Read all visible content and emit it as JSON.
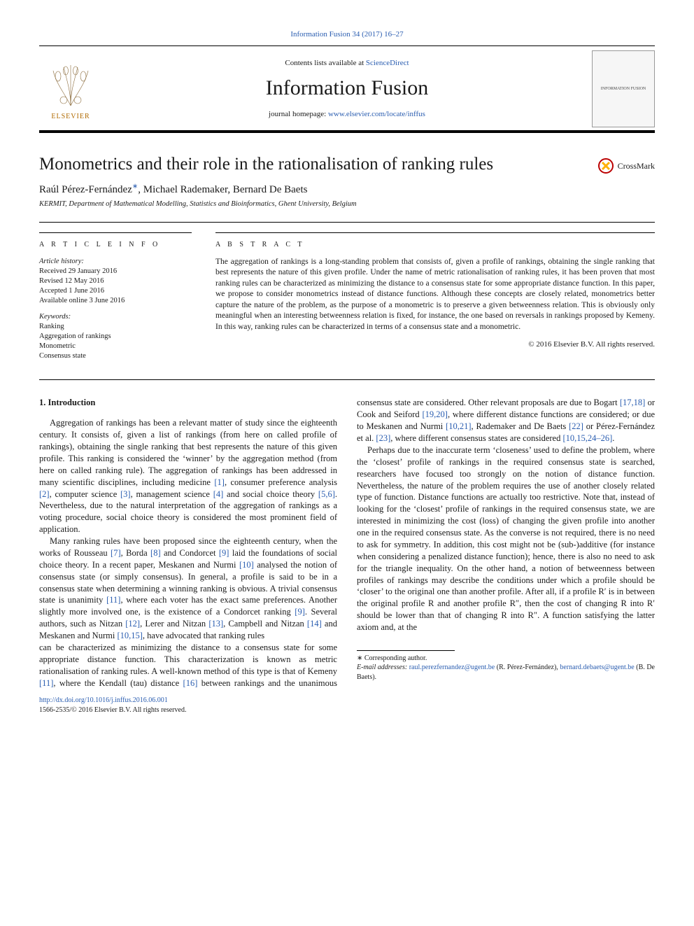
{
  "citation": "Information Fusion 34 (2017) 16–27",
  "masthead": {
    "contents_prefix": "Contents lists available at ",
    "contents_link": "ScienceDirect",
    "journal": "Information Fusion",
    "homepage_prefix": "journal homepage: ",
    "homepage_link": "www.elsevier.com/locate/inffus",
    "publisher_logo_alt": "ELSEVIER",
    "cover_thumb_alt": "INFORMATION FUSION"
  },
  "crossmark": "CrossMark",
  "title": "Monometrics and their role in the rationalisation of ranking rules",
  "authors_html": "Raúl Pérez-Fernández<sup>∗</sup>, Michael Rademaker, Bernard De Baets",
  "affiliation": "KERMIT, Department of Mathematical Modelling, Statistics and Bioinformatics, Ghent University, Belgium",
  "article_info": {
    "heading": "A R T I C L E   I N F O",
    "history_label": "Article history:",
    "history": [
      "Received 29 January 2016",
      "Revised 12 May 2016",
      "Accepted 1 June 2016",
      "Available online 3 June 2016"
    ],
    "keywords_label": "Keywords:",
    "keywords": [
      "Ranking",
      "Aggregation of rankings",
      "Monometric",
      "Consensus state"
    ]
  },
  "abstract": {
    "heading": "A B S T R A C T",
    "text": "The aggregation of rankings is a long-standing problem that consists of, given a profile of rankings, obtaining the single ranking that best represents the nature of this given profile. Under the name of metric rationalisation of ranking rules, it has been proven that most ranking rules can be characterized as minimizing the distance to a consensus state for some appropriate distance function. In this paper, we propose to consider monometrics instead of distance functions. Although these concepts are closely related, monometrics better capture the nature of the problem, as the purpose of a monometric is to preserve a given betweenness relation. This is obviously only meaningful when an interesting betweenness relation is fixed, for instance, the one based on reversals in rankings proposed by Kemeny. In this way, ranking rules can be characterized in terms of a consensus state and a monometric.",
    "copyright": "© 2016 Elsevier B.V. All rights reserved."
  },
  "body": {
    "section1_heading": "1. Introduction",
    "p1": "Aggregation of rankings has been a relevant matter of study since the eighteenth century. It consists of, given a list of rankings (from here on called profile of rankings), obtaining the single ranking that best represents the nature of this given profile. This ranking is considered the ‘winner’ by the aggregation method (from here on called ranking rule). The aggregation of rankings has been addressed in many scientific disciplines, including medicine [1], consumer preference analysis [2], computer science [3], management science [4] and social choice theory [5,6]. Nevertheless, due to the natural interpretation of the aggregation of rankings as a voting procedure, social choice theory is considered the most prominent field of application.",
    "p2": "Many ranking rules have been proposed since the eighteenth century, when the works of Rousseau [7], Borda [8] and Condorcet [9] laid the foundations of social choice theory. In a recent paper, Meskanen and Nurmi [10] analysed the notion of consensus state (or simply consensus). In general, a profile is said to be in a consensus state when determining a winning ranking is obvious. A trivial consensus state is unanimity [11], where each voter has the exact same preferences. Another slightly more involved one, is the existence of a Condorcet ranking [9]. Several authors, such as Nitzan [12], Lerer and Nitzan [13], Campbell and Nitzan [14] and Meskanen and Nurmi [10,15], have advocated that ranking rules",
    "p3": "can be characterized as minimizing the distance to a consensus state for some appropriate distance function. This characterization is known as metric rationalisation of ranking rules. A well-known method of this type is that of Kemeny [11], where the Kendall (tau) distance [16] between rankings and the unanimous consensus state are considered. Other relevant proposals are due to Bogart [17,18] or Cook and Seiford [19,20], where different distance functions are considered; or due to Meskanen and Nurmi [10,21], Rademaker and De Baets [22] or Pérez-Fernández et al. [23], where different consensus states are considered [10,15,24–26].",
    "p4": "Perhaps due to the inaccurate term ‘closeness’ used to define the problem, where the ‘closest’ profile of rankings in the required consensus state is searched, researchers have focused too strongly on the notion of distance function. Nevertheless, the nature of the problem requires the use of another closely related type of function. Distance functions are actually too restrictive. Note that, instead of looking for the ‘closest’ profile of rankings in the required consensus state, we are interested in minimizing the cost (loss) of changing the given profile into another one in the required consensus state. As the converse is not required, there is no need to ask for symmetry. In addition, this cost might not be (sub-)additive (for instance when considering a penalized distance function); hence, there is also no need to ask for the triangle inequality. On the other hand, a notion of betweenness between profiles of rankings may describe the conditions under which a profile should be ‘closer’ to the original one than another profile. After all, if a profile ℛ′ is in between the original profile ℛ and another profile ℛ″, then the cost of changing ℛ into ℛ′ should be lower than that of changing ℛ into ℛ″. A function satisfying the latter axiom and, at the"
  },
  "refs_to_color": [
    "[1]",
    "[2]",
    "[3]",
    "[4]",
    "[5,6]",
    "[7]",
    "[8]",
    "[9]",
    "[10]",
    "[11]",
    "[12]",
    "[13]",
    "[14]",
    "[10,15]",
    "[16]",
    "[17,18]",
    "[19,20]",
    "[10,21]",
    "[22]",
    "[23]",
    "[10,15,24–26]"
  ],
  "footnotes": {
    "corr": "∗ Corresponding author.",
    "emails_label": "E-mail addresses: ",
    "email1": "raul.perezfernandez@ugent.be",
    "email1_tail": " (R. Pérez-Fernández), ",
    "email2": "bernard.debaets@ugent.be",
    "email2_tail": " (B. De Baets)."
  },
  "doi": {
    "link": "http://dx.doi.org/10.1016/j.inffus.2016.06.001",
    "issn_line": "1566-2535/© 2016 Elsevier B.V. All rights reserved."
  },
  "colors": {
    "link": "#2a5db0",
    "text": "#1a1a1a",
    "rule": "#000000"
  }
}
